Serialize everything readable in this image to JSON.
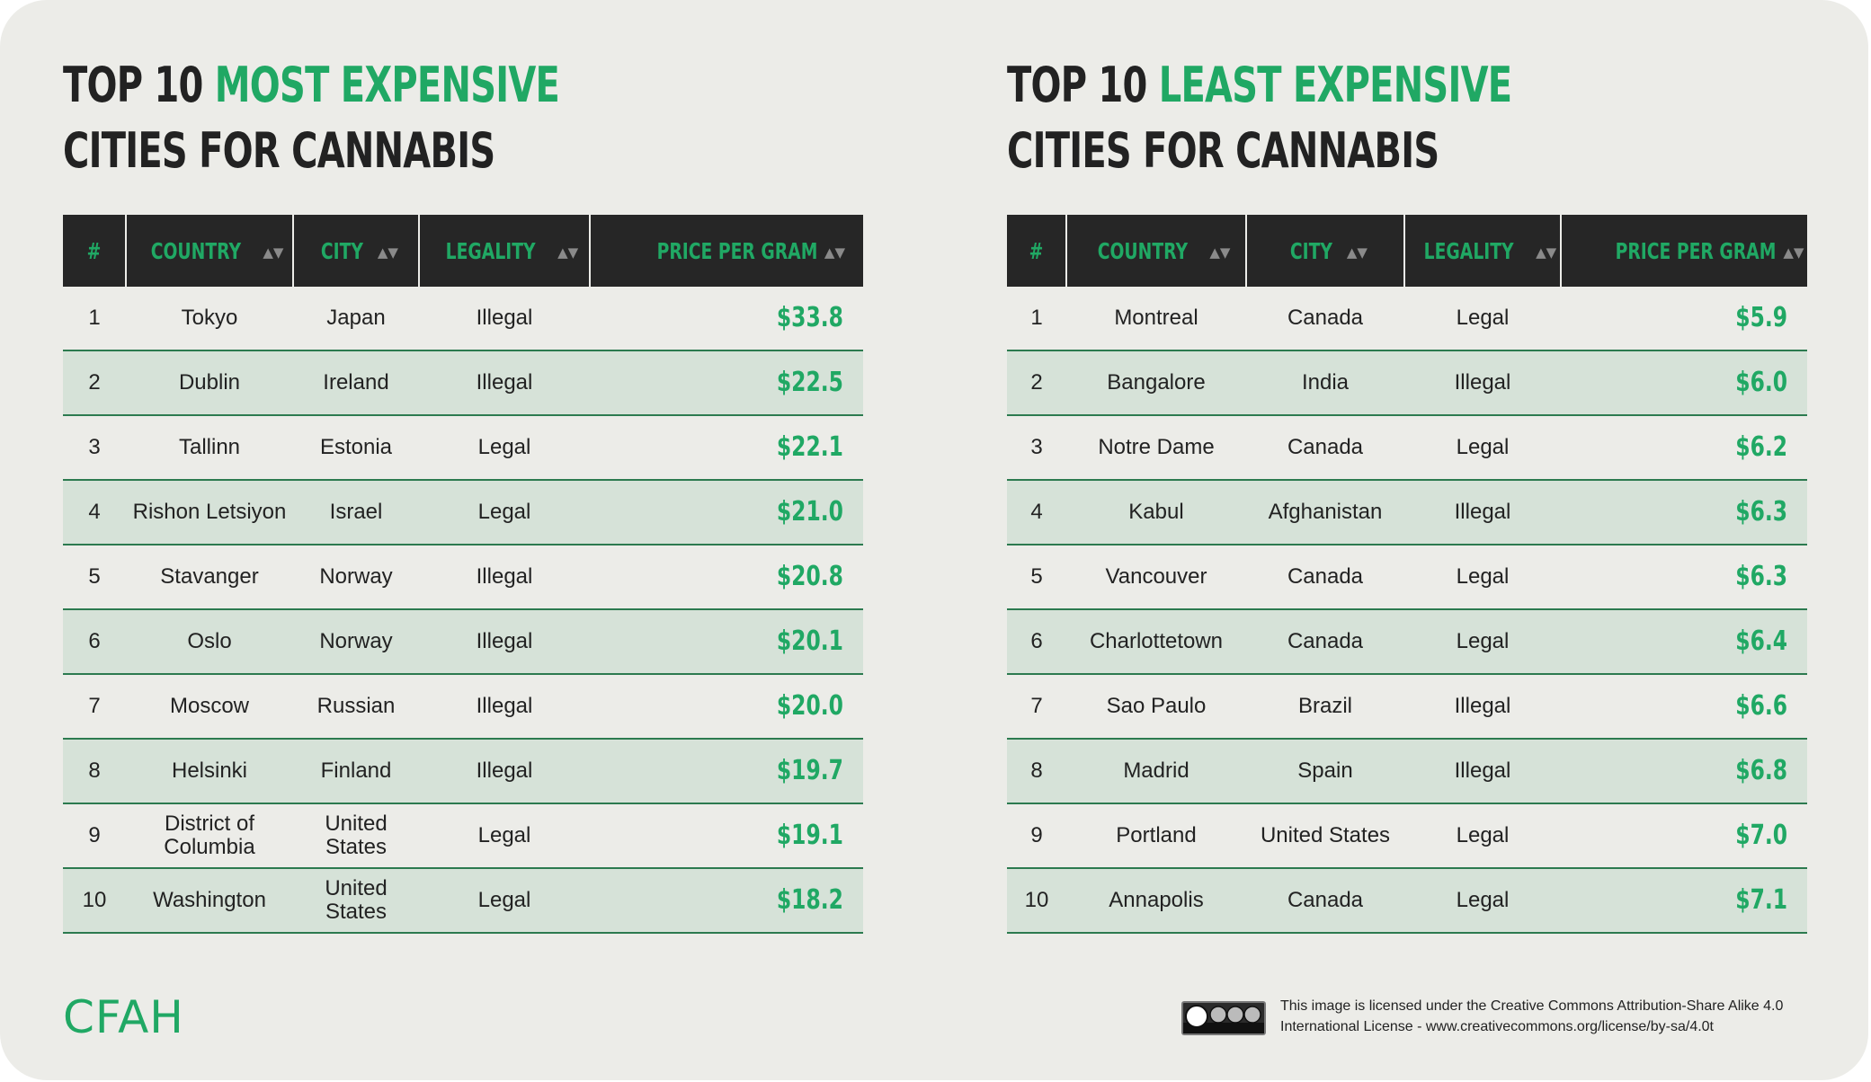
{
  "tables": [
    {
      "title_plain_1": "TOP 10 ",
      "title_highlight": "MOST EXPENSIVE",
      "title_line2": "CITIES FOR CANNABIS",
      "headers": [
        "#",
        "COUNTRY",
        "CITY",
        "LEGALITY",
        "PRICE PER GRAM"
      ],
      "rows": [
        {
          "rank": "1",
          "country": "Tokyo",
          "city": "Japan",
          "legality": "Illegal",
          "price": "$33.8"
        },
        {
          "rank": "2",
          "country": "Dublin",
          "city": "Ireland",
          "legality": "Illegal",
          "price": "$22.5"
        },
        {
          "rank": "3",
          "country": "Tallinn",
          "city": "Estonia",
          "legality": "Legal",
          "price": "$22.1"
        },
        {
          "rank": "4",
          "country": "Rishon Letsiyon",
          "city": "Israel",
          "legality": "Legal",
          "price": "$21.0"
        },
        {
          "rank": "5",
          "country": "Stavanger",
          "city": "Norway",
          "legality": "Illegal",
          "price": "$20.8"
        },
        {
          "rank": "6",
          "country": "Oslo",
          "city": "Norway",
          "legality": "Illegal",
          "price": "$20.1"
        },
        {
          "rank": "7",
          "country": "Moscow",
          "city": "Russian",
          "legality": "Illegal",
          "price": "$20.0"
        },
        {
          "rank": "8",
          "country": "Helsinki",
          "city": "Finland",
          "legality": "Illegal",
          "price": "$19.7"
        },
        {
          "rank": "9",
          "country": "District of Columbia",
          "city": "United States",
          "legality": "Legal",
          "price": "$19.1"
        },
        {
          "rank": "10",
          "country": "Washington",
          "city": "United States",
          "legality": "Legal",
          "price": "$18.2"
        }
      ]
    },
    {
      "title_plain_1": "TOP 10 ",
      "title_highlight": "LEAST EXPENSIVE",
      "title_line2": "CITIES FOR CANNABIS",
      "headers": [
        "#",
        "COUNTRY",
        "CITY",
        "LEGALITY",
        "PRICE PER GRAM"
      ],
      "rows": [
        {
          "rank": "1",
          "country": "Montreal",
          "city": "Canada",
          "legality": "Legal",
          "price": "$5.9"
        },
        {
          "rank": "2",
          "country": "Bangalore",
          "city": "India",
          "legality": "Illegal",
          "price": "$6.0"
        },
        {
          "rank": "3",
          "country": "Notre Dame",
          "city": "Canada",
          "legality": "Legal",
          "price": "$6.2"
        },
        {
          "rank": "4",
          "country": "Kabul",
          "city": "Afghanistan",
          "legality": "Illegal",
          "price": "$6.3"
        },
        {
          "rank": "5",
          "country": "Vancouver",
          "city": "Canada",
          "legality": "Legal",
          "price": "$6.3"
        },
        {
          "rank": "6",
          "country": "Charlottetown",
          "city": "Canada",
          "legality": "Legal",
          "price": "$6.4"
        },
        {
          "rank": "7",
          "country": "Sao Paulo",
          "city": "Brazil",
          "legality": "Illegal",
          "price": "$6.6"
        },
        {
          "rank": "8",
          "country": "Madrid",
          "city": "Spain",
          "legality": "Illegal",
          "price": "$6.8"
        },
        {
          "rank": "9",
          "country": "Portland",
          "city": "United States",
          "legality": "Legal",
          "price": "$7.0"
        },
        {
          "rank": "10",
          "country": "Annapolis",
          "city": "Canada",
          "legality": "Legal",
          "price": "$7.1"
        }
      ]
    }
  ],
  "footer": {
    "logo": "CFAH",
    "license_line1": "This image is licensed under the Creative Commons Attribution-Share Alike 4.0",
    "license_line2": "International License - www.creativecommons.org/license/by-sa/4.0t"
  },
  "colors": {
    "accent": "#20a864",
    "header_bg": "#262626",
    "row_alt": "#d6e2d8",
    "background": "#ecece8",
    "text": "#222222"
  },
  "icons": {
    "sort": "sort-arrows-icon",
    "license_badge": "cc-by-nc-sa-badge-icon"
  }
}
